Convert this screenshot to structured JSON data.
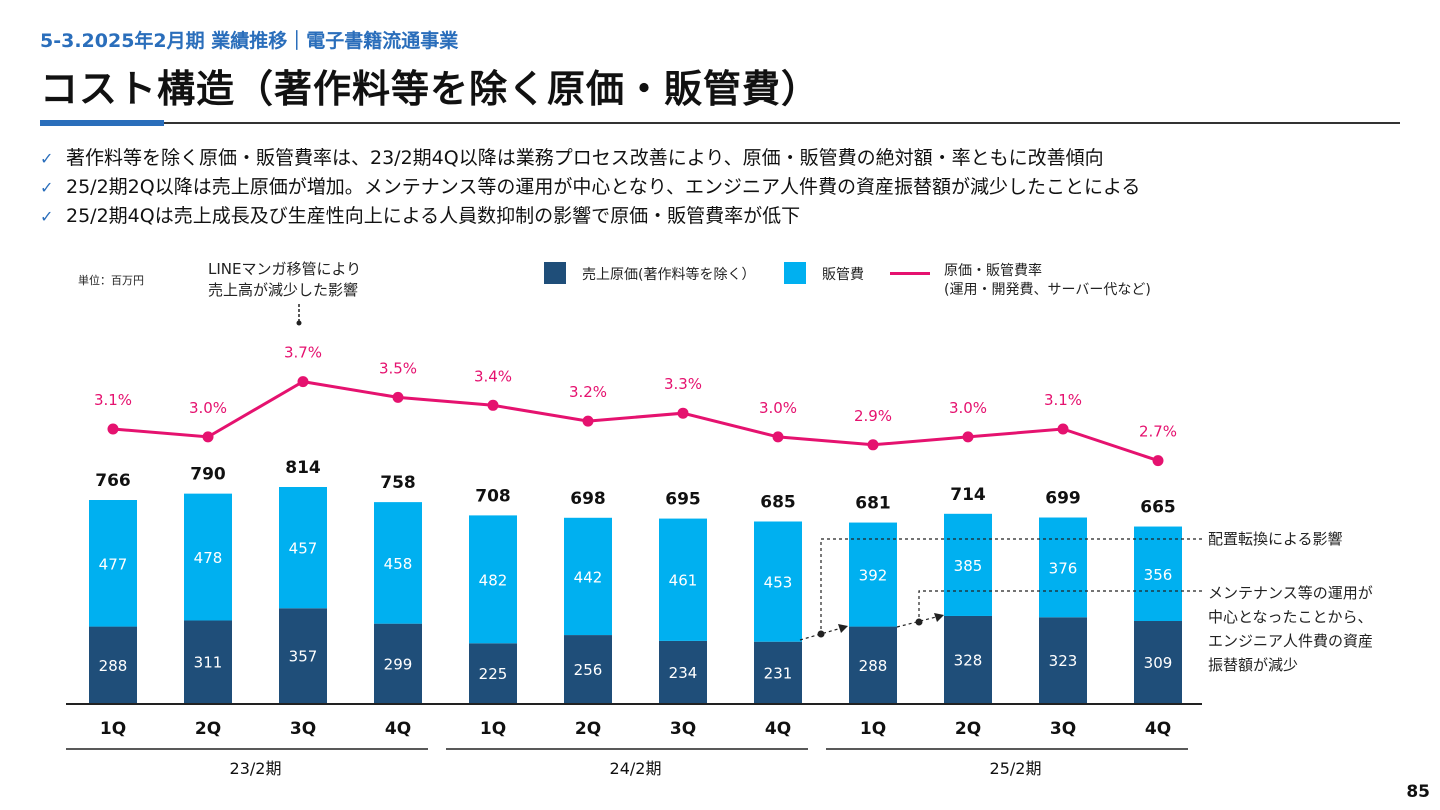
{
  "header": {
    "breadcrumb": "5-3.2025年2月期 業績推移｜電子書籍流通事業",
    "title": "コスト構造（著作料等を除く原価・販管費）"
  },
  "bullets": [
    "著作料等を除く原価・販管費率は、23/2期4Q以降は業務プロセス改善により、原価・販管費の絶対額・率ともに改善傾向",
    "25/2期2Q以降は売上原価が増加。メンテナンス等の運用が中心となり、エンジニア人件費の資産振替額が減少したことによる",
    "25/2期4Qは売上成長及び生産性向上による人員数抑制の影響で原価・販管費率が低下"
  ],
  "chart_data": {
    "type": "bar",
    "unit_label": "単位：百万円",
    "categories": [
      "1Q",
      "2Q",
      "3Q",
      "4Q",
      "1Q",
      "2Q",
      "3Q",
      "4Q",
      "1Q",
      "2Q",
      "3Q",
      "4Q"
    ],
    "groups": [
      {
        "label": "23/2期",
        "quarters": 4
      },
      {
        "label": "24/2期",
        "quarters": 4
      },
      {
        "label": "25/2期",
        "quarters": 4
      }
    ],
    "totals": [
      766,
      790,
      814,
      758,
      708,
      698,
      695,
      685,
      681,
      714,
      699,
      665
    ],
    "series": [
      {
        "name": "売上原価(著作料等を除く）",
        "color": "#1f4e79",
        "values": [
          288,
          311,
          357,
          299,
          225,
          256,
          234,
          231,
          288,
          328,
          323,
          309
        ]
      },
      {
        "name": "販管費",
        "color": "#00b0f0",
        "values": [
          477,
          478,
          457,
          458,
          482,
          442,
          461,
          453,
          392,
          385,
          376,
          356
        ]
      }
    ],
    "line_series": {
      "name_line1": "原価・販管費率",
      "name_line2": "(運用・開発費、サーバー代など)",
      "color": "#e5126f",
      "values": [
        3.1,
        3.0,
        3.7,
        3.5,
        3.4,
        3.2,
        3.3,
        3.0,
        2.9,
        3.0,
        3.1,
        2.7
      ],
      "labels": [
        "3.1%",
        "3.0%",
        "3.7%",
        "3.5%",
        "3.4%",
        "3.2%",
        "3.3%",
        "3.0%",
        "2.9%",
        "3.0%",
        "3.1%",
        "2.7%"
      ]
    },
    "legend_position": "top",
    "grid": false,
    "annotations": {
      "line_migration": "LINEマンガ移管により\n売上高が減少した影響",
      "reallocation": "配置転換による影響",
      "maintenance": "メンテナンス等の運用が\n中心となったことから、\nエンジニア人件費の資産\n振替額が減少"
    }
  },
  "footer": {
    "page_number": "85"
  }
}
